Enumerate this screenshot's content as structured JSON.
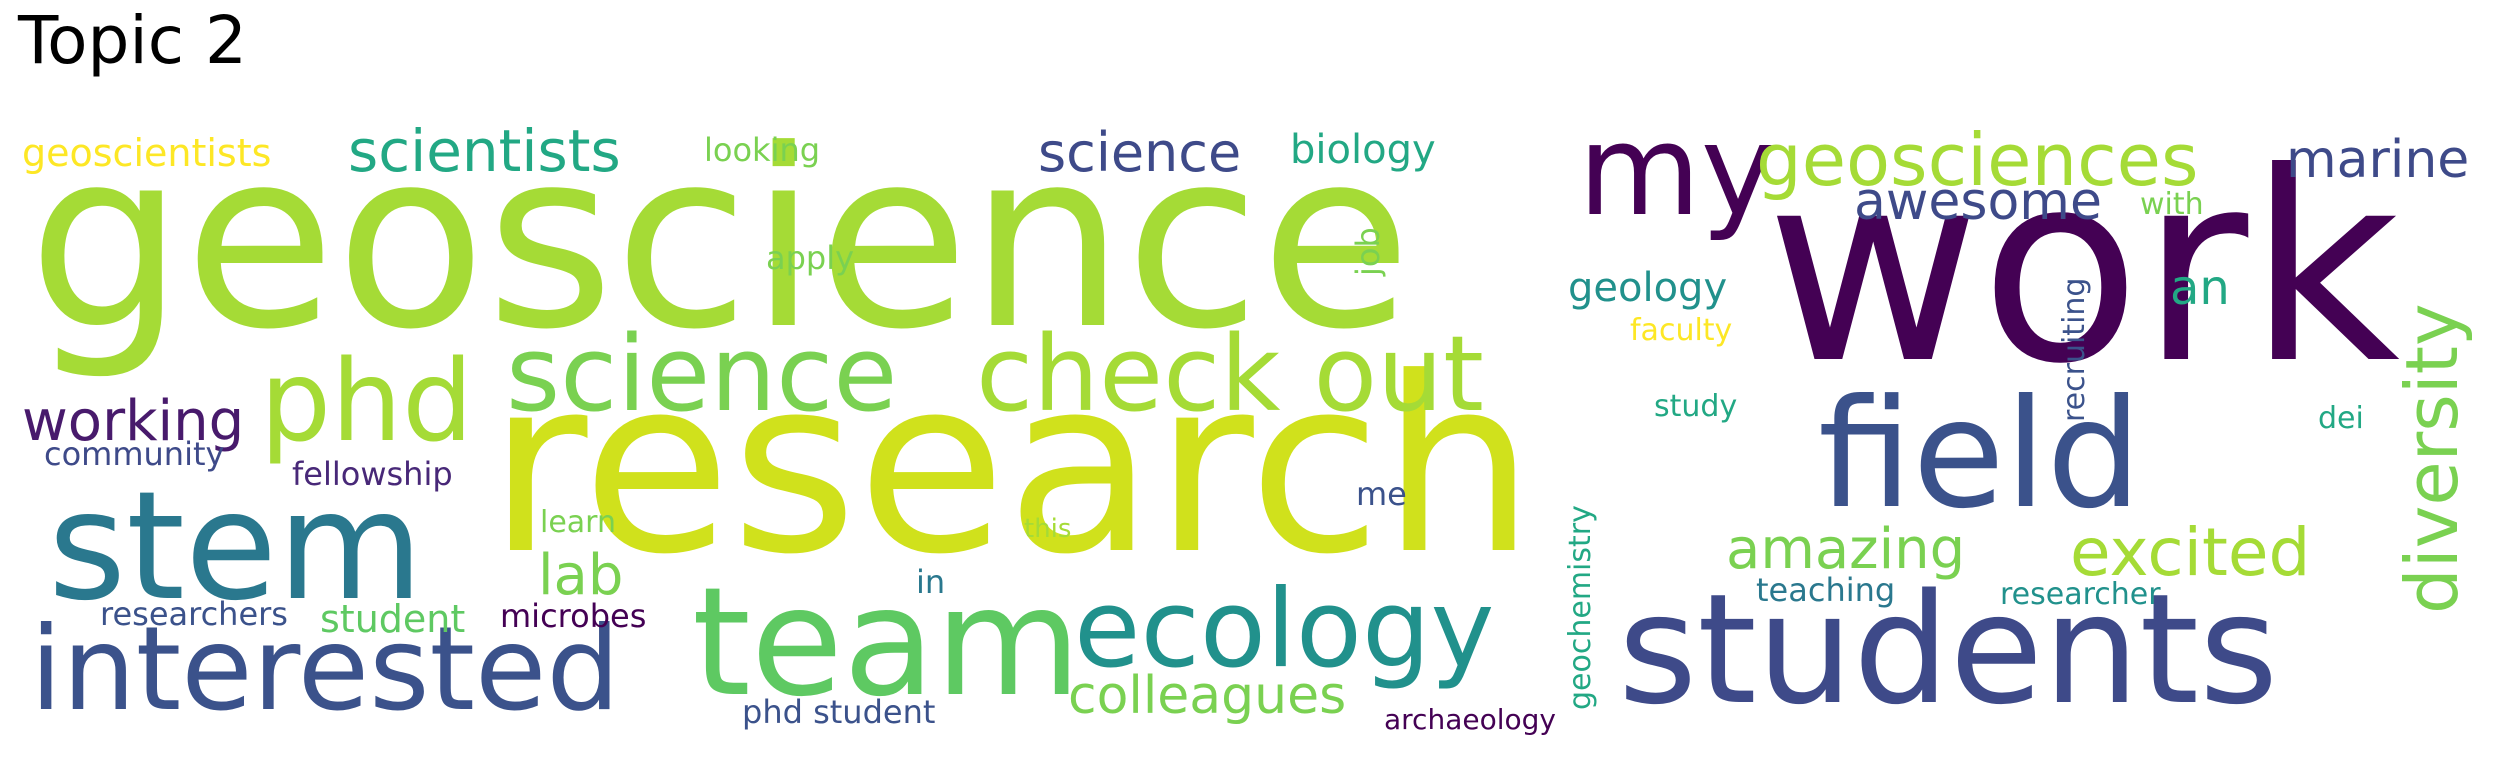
{
  "title": "Topic 2",
  "palette": {
    "lime": "#a5db36",
    "yellow_green": "#d0e11c",
    "dark_purple": "#440154",
    "indigo": "#481a6c",
    "slate_blue": "#3e4a89",
    "blue": "#3b528b",
    "teal": "#2a788e",
    "green_teal": "#21918c",
    "sea_green": "#22a884",
    "green": "#5ec962",
    "light_green": "#7ad151",
    "yellow": "#fde725",
    "purple": "#482878"
  },
  "words": [
    "geoscience",
    "research",
    "work",
    "students",
    "team",
    "field",
    "stem",
    "interested",
    "ecology",
    "science",
    "check out",
    "phd",
    "my",
    "geosciences",
    "scientists",
    "science",
    "diversity",
    "excited",
    "marine",
    "awesome",
    "working",
    "colleagues",
    "amazing",
    "lab",
    "geology",
    "geoscientists",
    "biology",
    "an",
    "student",
    "researchers",
    "community",
    "fellowship",
    "microbes",
    "looking",
    "apply",
    "job",
    "faculty",
    "study",
    "recruiting",
    "with",
    "dei",
    "learn",
    "this",
    "me",
    "in",
    "teaching",
    "researcher",
    "geochemistry",
    "phd student",
    "archaeology"
  ]
}
